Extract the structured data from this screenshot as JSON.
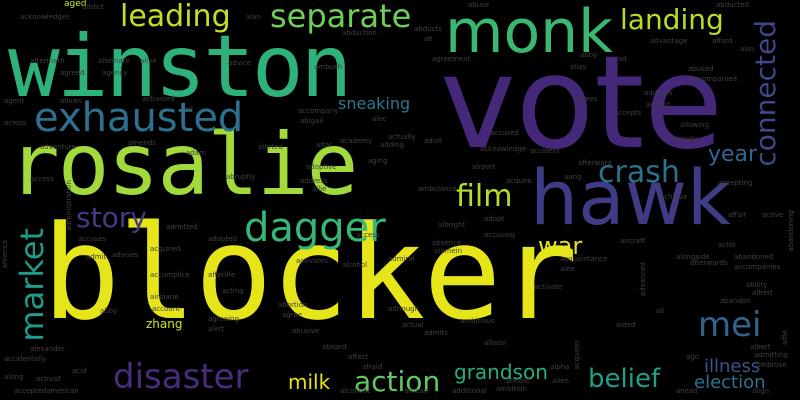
{
  "words": [
    {
      "t": "blocker",
      "c": "#e6e51a"
    },
    {
      "t": "vote",
      "c": "#46287a"
    },
    {
      "t": "rosalie",
      "c": "#a2d93b"
    },
    {
      "t": "winston",
      "c": "#2eb27c"
    },
    {
      "t": "hawk",
      "c": "#3f3c85"
    },
    {
      "t": "monk",
      "c": "#3ab872"
    },
    {
      "t": "exhausted",
      "c": "#2d6f8e"
    },
    {
      "t": "dagger",
      "c": "#35b779"
    },
    {
      "t": "separate",
      "c": "#6ece58"
    },
    {
      "t": "leading",
      "c": "#c0df25"
    },
    {
      "t": "landing",
      "c": "#b7dd29"
    },
    {
      "t": "connected",
      "c": "#3f4788"
    },
    {
      "t": "crash",
      "c": "#2c718e"
    },
    {
      "t": "film",
      "c": "#b5de2b"
    },
    {
      "t": "market",
      "c": "#1e9c89"
    },
    {
      "t": "disaster",
      "c": "#472d7b"
    },
    {
      "t": "story",
      "c": "#443a83"
    },
    {
      "t": "war",
      "c": "#e4e419"
    },
    {
      "t": "year",
      "c": "#31678e"
    },
    {
      "t": "mei",
      "c": "#33638d"
    },
    {
      "t": "action",
      "c": "#5ec962"
    },
    {
      "t": "belief",
      "c": "#1f9e89"
    },
    {
      "t": "grandson",
      "c": "#26ad81"
    },
    {
      "t": "illness",
      "c": "#3b528b"
    },
    {
      "t": "election",
      "c": "#2c728e"
    },
    {
      "t": "milk",
      "c": "#e5e419"
    },
    {
      "t": "sneaking",
      "c": "#2a788e"
    },
    {
      "t": "zhang",
      "c": "#d2e21b"
    },
    {
      "t": "aged",
      "c": "#c8e020"
    },
    {
      "t": "abuse",
      "c": "#404040"
    },
    {
      "t": "abducted",
      "c": "#404040"
    },
    {
      "t": "addict",
      "c": "#404040"
    },
    {
      "t": "acknowledges",
      "c": "#404040"
    },
    {
      "t": "aftermath",
      "c": "#404040"
    },
    {
      "t": "alternate",
      "c": "#404040"
    },
    {
      "t": "alive",
      "c": "#404040"
    },
    {
      "t": "abduction",
      "c": "#404040"
    },
    {
      "t": "abducts",
      "c": "#404040"
    },
    {
      "t": "ah",
      "c": "#404040"
    },
    {
      "t": "alan",
      "c": "#404040"
    },
    {
      "t": "agreed",
      "c": "#404040"
    },
    {
      "t": "agreement",
      "c": "#404040"
    },
    {
      "t": "advantage",
      "c": "#404040"
    },
    {
      "t": "afford",
      "c": "#404040"
    },
    {
      "t": "also",
      "c": "#404040"
    },
    {
      "t": "agency",
      "c": "#404040"
    },
    {
      "t": "advice",
      "c": "#404040"
    },
    {
      "t": "alias",
      "c": "#404040"
    },
    {
      "t": "abby",
      "c": "#404040"
    },
    {
      "t": "ad",
      "c": "#404040"
    },
    {
      "t": "abused",
      "c": "#404040"
    },
    {
      "t": "accompanied",
      "c": "#404040"
    },
    {
      "t": "ambush",
      "c": "#404040"
    },
    {
      "t": "addition",
      "c": "#404040"
    },
    {
      "t": "agent",
      "c": "#404040"
    },
    {
      "t": "allows",
      "c": "#404040"
    },
    {
      "t": "activated",
      "c": "#404040"
    },
    {
      "t": "air",
      "c": "#404040"
    },
    {
      "t": "agrees",
      "c": "#404040"
    },
    {
      "t": "airfield",
      "c": "#404040"
    },
    {
      "t": "allowing",
      "c": "#404040"
    },
    {
      "t": "abigail",
      "c": "#404040"
    },
    {
      "t": "accompany",
      "c": "#404040"
    },
    {
      "t": "alec",
      "c": "#404040"
    },
    {
      "t": "accused",
      "c": "#404040"
    },
    {
      "t": "accepts",
      "c": "#404040"
    },
    {
      "t": "already",
      "c": "#404040"
    },
    {
      "t": "across",
      "c": "#404040"
    },
    {
      "t": "amends",
      "c": "#404040"
    },
    {
      "t": "altar",
      "c": "#404040"
    },
    {
      "t": "academy",
      "c": "#404040"
    },
    {
      "t": "actually",
      "c": "#404040"
    },
    {
      "t": "adding",
      "c": "#404040"
    },
    {
      "t": "adult",
      "c": "#404040"
    },
    {
      "t": "acknowledge",
      "c": "#404040"
    },
    {
      "t": "accident",
      "c": "#404040"
    },
    {
      "t": "adventure",
      "c": "#404040"
    },
    {
      "t": "adam",
      "c": "#404040"
    },
    {
      "t": "alerted",
      "c": "#404040"
    },
    {
      "t": "adoptive",
      "c": "#404040"
    },
    {
      "t": "aging",
      "c": "#404040"
    },
    {
      "t": "airport",
      "c": "#404040"
    },
    {
      "t": "afterward",
      "c": "#404040"
    },
    {
      "t": "access",
      "c": "#404040"
    },
    {
      "t": "abruptly",
      "c": "#404040"
    },
    {
      "t": "address",
      "c": "#404040"
    },
    {
      "t": "allie",
      "c": "#404040"
    },
    {
      "t": "acquire",
      "c": "#404040"
    },
    {
      "t": "aang",
      "c": "#404040"
    },
    {
      "t": "accepting",
      "c": "#404040"
    },
    {
      "t": "ambulance",
      "c": "#404040"
    },
    {
      "t": "achieve",
      "c": "#404040"
    },
    {
      "t": "albright",
      "c": "#404040"
    },
    {
      "t": "adopt",
      "c": "#404040"
    },
    {
      "t": "affair",
      "c": "#404040"
    },
    {
      "t": "active",
      "c": "#404040"
    },
    {
      "t": "accuses",
      "c": "#404040"
    },
    {
      "t": "access",
      "c": "#404040"
    },
    {
      "t": "absence",
      "c": "#404040"
    },
    {
      "t": "accusing",
      "c": "#404040"
    },
    {
      "t": "alamein",
      "c": "#404040"
    },
    {
      "t": "aircraft",
      "c": "#404040"
    },
    {
      "t": "actor",
      "c": "#404040"
    },
    {
      "t": "admitted",
      "c": "#404040"
    },
    {
      "t": "acquired",
      "c": "#404040"
    },
    {
      "t": "adopted",
      "c": "#404040"
    },
    {
      "t": "admit",
      "c": "#404040"
    },
    {
      "t": "advises",
      "c": "#404040"
    },
    {
      "t": "activates",
      "c": "#404040"
    },
    {
      "t": "alcohol",
      "c": "#404040"
    },
    {
      "t": "admiral",
      "c": "#404040"
    },
    {
      "t": "acquaintance",
      "c": "#404040"
    },
    {
      "t": "alex",
      "c": "#404040"
    },
    {
      "t": "alongside",
      "c": "#404040"
    },
    {
      "t": "afterwards",
      "c": "#404040"
    },
    {
      "t": "abandoned",
      "c": "#404040"
    },
    {
      "t": "accompanies",
      "c": "#404040"
    },
    {
      "t": "accomplice",
      "c": "#404040"
    },
    {
      "t": "afterlife",
      "c": "#404040"
    },
    {
      "t": "acting",
      "c": "#404040"
    },
    {
      "t": "activate",
      "c": "#404040"
    },
    {
      "t": "ability",
      "c": "#404040"
    },
    {
      "t": "alfred",
      "c": "#404040"
    },
    {
      "t": "abandon",
      "c": "#404040"
    },
    {
      "t": "airplane",
      "c": "#404040"
    },
    {
      "t": "account",
      "c": "#404040"
    },
    {
      "t": "abortion",
      "c": "#404040"
    },
    {
      "t": "agree",
      "c": "#404040"
    },
    {
      "t": "although",
      "c": "#404040"
    },
    {
      "t": "ali",
      "c": "#404040"
    },
    {
      "t": "abby",
      "c": "#404040"
    },
    {
      "t": "agreeing",
      "c": "#404040"
    },
    {
      "t": "alert",
      "c": "#404040"
    },
    {
      "t": "abusive",
      "c": "#404040"
    },
    {
      "t": "actual",
      "c": "#404040"
    },
    {
      "t": "admits",
      "c": "#404040"
    },
    {
      "t": "ambitious",
      "c": "#404040"
    },
    {
      "t": "allison",
      "c": "#404040"
    },
    {
      "t": "aided",
      "c": "#404040"
    },
    {
      "t": "albert",
      "c": "#404040"
    },
    {
      "t": "alexander",
      "c": "#404040"
    },
    {
      "t": "accidentally",
      "c": "#404040"
    },
    {
      "t": "aboard",
      "c": "#404040"
    },
    {
      "t": "afraid",
      "c": "#404040"
    },
    {
      "t": "affect",
      "c": "#404040"
    },
    {
      "t": "ago",
      "c": "#404040"
    },
    {
      "t": "admitting",
      "c": "#404040"
    },
    {
      "t": "ambrose",
      "c": "#404040"
    },
    {
      "t": "along",
      "c": "#404040"
    },
    {
      "t": "activist",
      "c": "#404040"
    },
    {
      "t": "acid",
      "c": "#404040"
    },
    {
      "t": "alpha",
      "c": "#404040"
    },
    {
      "t": "almost",
      "c": "#404040"
    },
    {
      "t": "alien",
      "c": "#404040"
    },
    {
      "t": "accepted",
      "c": "#404040"
    },
    {
      "t": "american",
      "c": "#404040"
    },
    {
      "t": "alcoholic",
      "c": "#404040"
    },
    {
      "t": "african",
      "c": "#404040"
    },
    {
      "t": "additional",
      "c": "#404040"
    },
    {
      "t": "ambition",
      "c": "#404040"
    },
    {
      "t": "anead",
      "c": "#404040"
    },
    {
      "t": "align",
      "c": "#404040"
    },
    {
      "t": "america",
      "c": "#404040"
    },
    {
      "t": "abandoning",
      "c": "#404040"
    },
    {
      "t": "administration",
      "c": "#404040"
    },
    {
      "t": "advanced",
      "c": "#404040"
    },
    {
      "t": "acquires",
      "c": "#404040"
    },
    {
      "t": "alfie",
      "c": "#404040"
    }
  ]
}
